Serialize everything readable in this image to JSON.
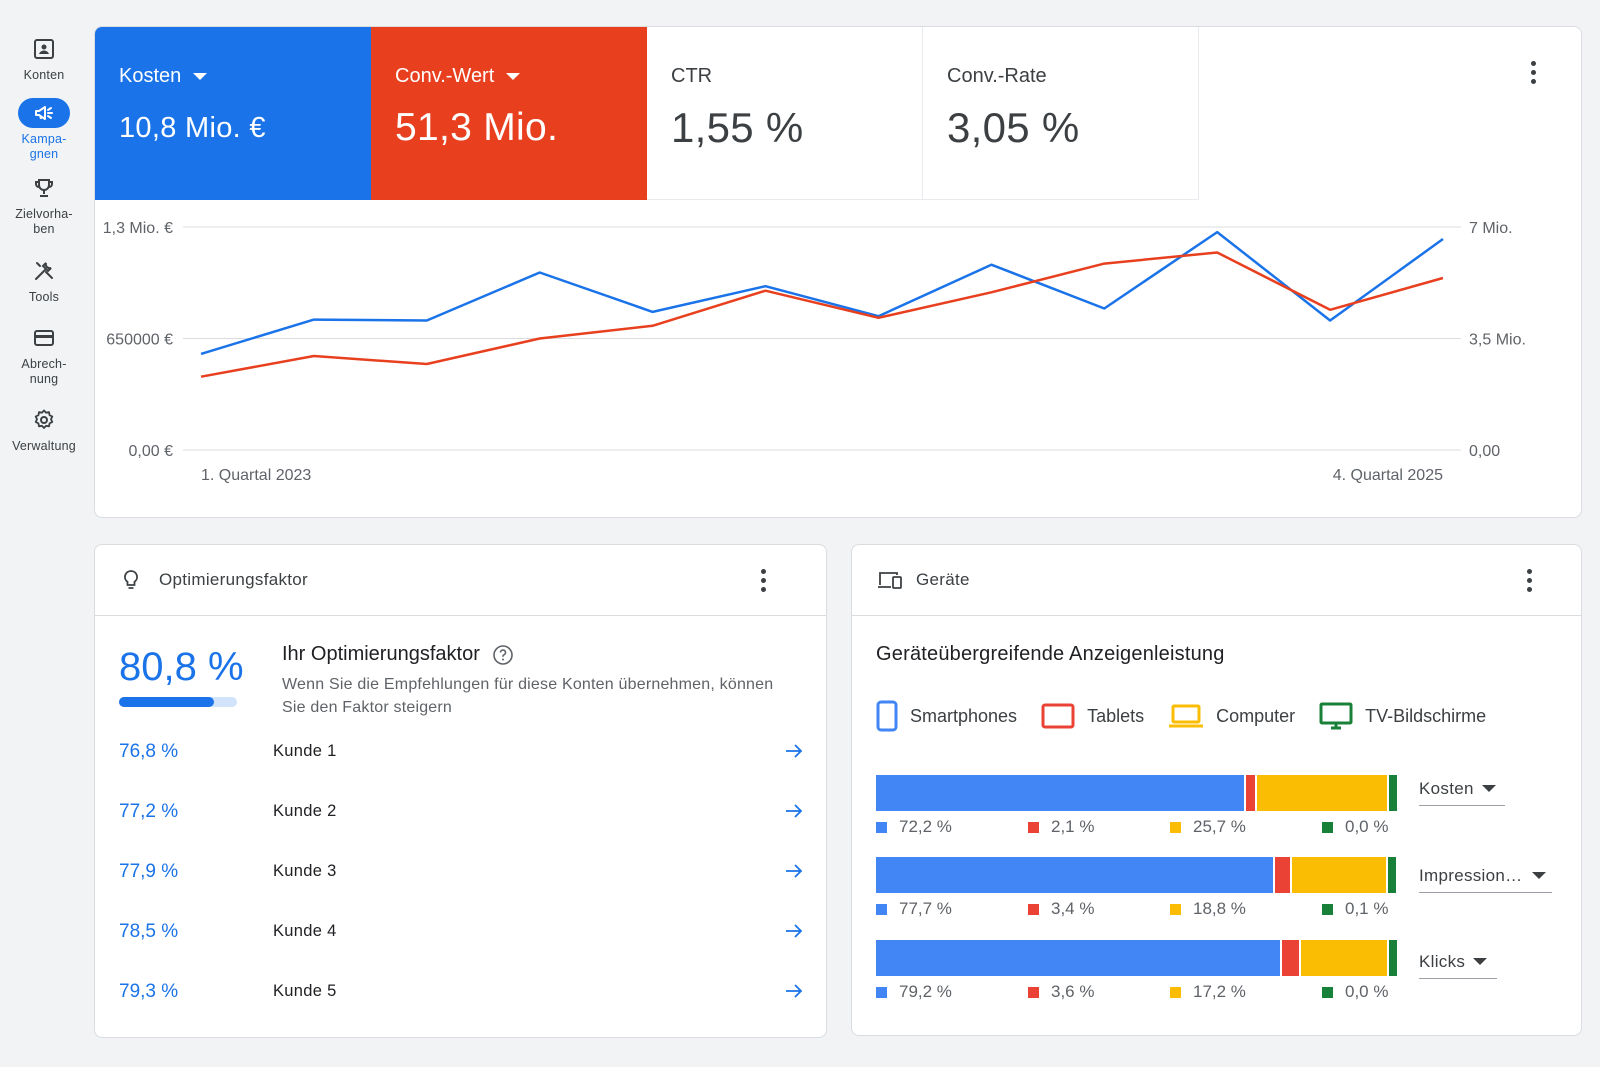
{
  "nav": [
    {
      "label": "Konten",
      "icon": "accounts-icon",
      "active": false
    },
    {
      "label": "Kampa-\ngnen",
      "icon": "campaigns-icon",
      "active": true
    },
    {
      "label": "Zielvorha-\nben",
      "icon": "goals-icon",
      "active": false
    },
    {
      "label": "Tools",
      "icon": "tools-icon",
      "active": false
    },
    {
      "label": "Abrech-\nnung",
      "icon": "billing-icon",
      "active": false
    },
    {
      "label": "Verwaltung",
      "icon": "admin-icon",
      "active": false
    }
  ],
  "metrics": [
    {
      "label": "Kosten",
      "value": "10,8 Mio. €",
      "selected": true,
      "color": "#1a73e8"
    },
    {
      "label": "Conv.-Wert",
      "value": "51,3 Mio.",
      "selected": true,
      "color": "#e8401f"
    },
    {
      "label": "CTR",
      "value": "1,55 %",
      "selected": false
    },
    {
      "label": "Conv.-Rate",
      "value": "3,05 %",
      "selected": false
    }
  ],
  "chart_data": {
    "type": "line",
    "x_labels": [
      "1. Quartal 2023",
      "4. Quartal 2025"
    ],
    "left_axis": {
      "ticks": [
        "0,00 €",
        "650000 €",
        "1,3 Mio. €"
      ],
      "ylim": [
        0,
        1300000
      ]
    },
    "right_axis": {
      "ticks": [
        "0,00",
        "3,5 Mio.",
        "7 Mio."
      ],
      "ylim": [
        0,
        7000000
      ]
    },
    "series": [
      {
        "color": "#1a73e8",
        "axis": "left",
        "values": [
          560000,
          760000,
          755000,
          1035000,
          805000,
          955000,
          780000,
          1080000,
          825000,
          1270000,
          755000,
          1230000
        ]
      },
      {
        "color": "#e8401f",
        "axis": "right",
        "values": [
          2300000,
          2950000,
          2700000,
          3500000,
          3900000,
          5000000,
          4150000,
          4950000,
          5850000,
          6200000,
          4400000,
          5400000
        ]
      }
    ]
  },
  "optimization": {
    "title": "Optimierungsfaktor",
    "score": "80,8 %",
    "score_fraction": 0.808,
    "heading": "Ihr Optimierungsfaktor",
    "description": "Wenn Sie die Empfehlungen für diese Konten übernehmen, können Sie den Faktor steigern",
    "clients": [
      {
        "pct": "76,8 %",
        "name": "Kunde 1"
      },
      {
        "pct": "77,2 %",
        "name": "Kunde 2"
      },
      {
        "pct": "77,9 %",
        "name": "Kunde 3"
      },
      {
        "pct": "78,5 %",
        "name": "Kunde 4"
      },
      {
        "pct": "79,3 %",
        "name": "Kunde 5"
      }
    ]
  },
  "devices": {
    "title": "Geräte",
    "heading": "Geräteübergreifende Anzeigenleistung",
    "legend": [
      {
        "label": "Smartphones",
        "color": "#4285f4",
        "icon": "smartphone-icon"
      },
      {
        "label": "Tablets",
        "color": "#ea4335",
        "icon": "tablet-icon"
      },
      {
        "label": "Computer",
        "color": "#fbbc04",
        "icon": "laptop-icon"
      },
      {
        "label": "TV-Bildschirme",
        "color": "#188038",
        "icon": "tv-icon"
      }
    ],
    "rows": [
      {
        "metric": "Kosten",
        "values": [
          72.2,
          2.1,
          25.7,
          0.0
        ],
        "labels": [
          "72,2 %",
          "2,1 %",
          "25,7 %",
          "0,0 %"
        ]
      },
      {
        "metric": "Impression…",
        "values": [
          77.7,
          3.4,
          18.8,
          0.1
        ],
        "labels": [
          "77,7 %",
          "3,4 %",
          "18,8 %",
          "0,1 %"
        ]
      },
      {
        "metric": "Klicks",
        "values": [
          79.2,
          3.6,
          17.2,
          0.0
        ],
        "labels": [
          "79,2 %",
          "3,6 %",
          "17,2 %",
          "0,0 %"
        ]
      }
    ]
  }
}
